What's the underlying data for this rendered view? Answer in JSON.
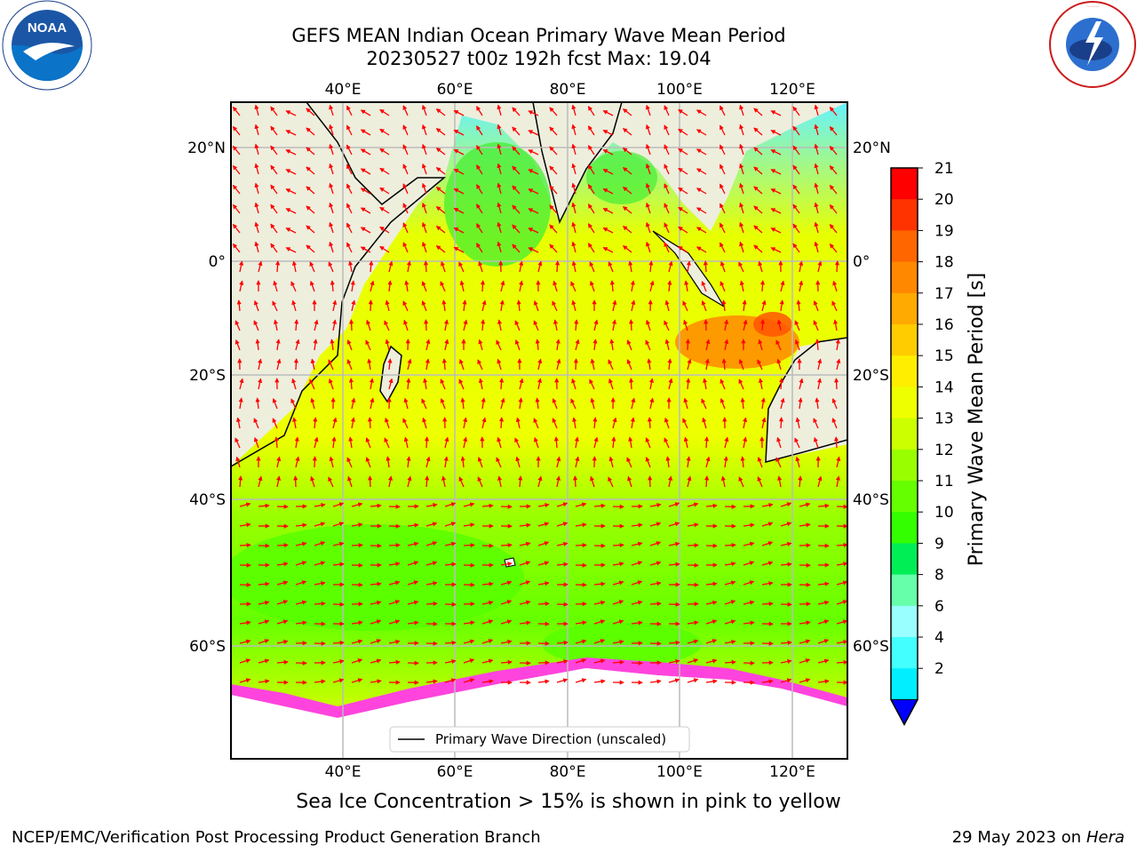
{
  "title": {
    "line1": "GEFS MEAN Indian Ocean Primary Wave Mean Period",
    "line2": "20230527 t00z 192h fcst   Max: 19.04"
  },
  "map": {
    "lon_ticks": [
      "40°E",
      "60°E",
      "80°E",
      "100°E",
      "120°E"
    ],
    "lat_ticks": [
      "20°N",
      "0°",
      "20°S",
      "40°S",
      "60°S"
    ],
    "legend_label": "Primary Wave Direction (unscaled)"
  },
  "colorbar": {
    "label": "Primary Wave Mean Period [s]",
    "ticks": [
      "21",
      "20",
      "19",
      "18",
      "17",
      "16",
      "15",
      "14",
      "13",
      "12",
      "11",
      "10",
      "9",
      "8",
      "6",
      "4",
      "2"
    ],
    "colors": [
      "#ff0000",
      "#ff3300",
      "#ff6600",
      "#ff8800",
      "#ffaa00",
      "#ffcc00",
      "#ffee00",
      "#eeff00",
      "#ccff00",
      "#99ff00",
      "#66ff00",
      "#33ff00",
      "#00ee55",
      "#66ffaa",
      "#99ffff",
      "#44ffff",
      "#00eeff",
      "#0077ff"
    ]
  },
  "caption": "Sea Ice Concentration > 15% is shown in pink to yellow",
  "footer": {
    "left": "NCEP/EMC/Verification Post Processing Product Generation Branch",
    "right_date": "29 May 2023 on",
    "right_host": "Hera"
  },
  "logos": {
    "left": "NOAA",
    "right": "NATIONAL WEATHER SERVICE"
  }
}
